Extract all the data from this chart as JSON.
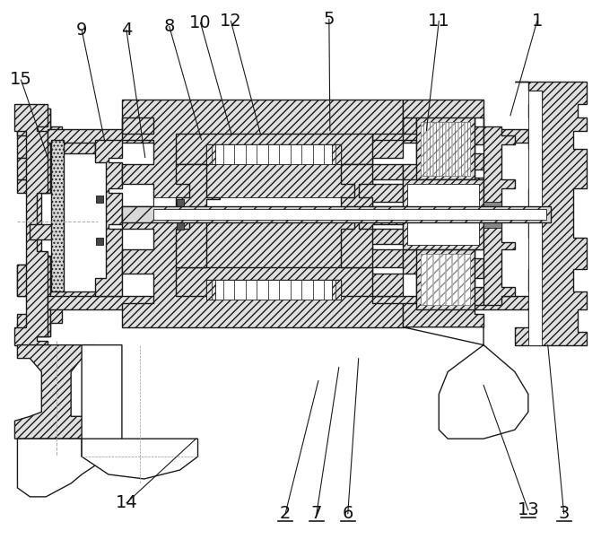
{
  "fig_width": 6.7,
  "fig_height": 6.11,
  "dpi": 100,
  "bg_color": "#ffffff",
  "line_color": "#1a1a1a",
  "annotations": [
    [
      "9",
      90,
      32,
      116,
      158
    ],
    [
      "4",
      140,
      32,
      161,
      175
    ],
    [
      "8",
      188,
      28,
      224,
      155
    ],
    [
      "10",
      223,
      24,
      258,
      150
    ],
    [
      "12",
      257,
      22,
      290,
      148
    ],
    [
      "5",
      367,
      20,
      368,
      145
    ],
    [
      "11",
      490,
      22,
      476,
      145
    ],
    [
      "1",
      600,
      22,
      570,
      128
    ],
    [
      "15",
      22,
      88,
      52,
      175
    ],
    [
      "2",
      318,
      574,
      355,
      425
    ],
    [
      "7",
      353,
      574,
      378,
      410
    ],
    [
      "6",
      388,
      574,
      400,
      400
    ],
    [
      "13",
      590,
      570,
      540,
      430
    ],
    [
      "3",
      630,
      574,
      612,
      385
    ],
    [
      "14",
      140,
      562,
      218,
      490
    ]
  ]
}
